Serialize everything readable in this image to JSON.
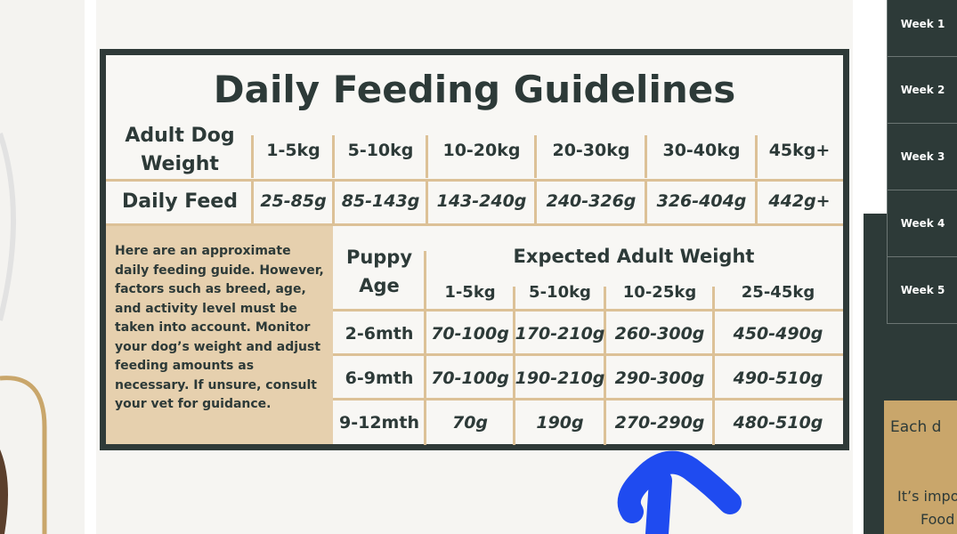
{
  "title": "Daily Feeding Guidelines",
  "adult_table": {
    "header": [
      "Adult Dog Weight",
      "1-5kg",
      "5-10kg",
      "10-20kg",
      "20-30kg",
      "30-40kg",
      "45kg+"
    ],
    "row": [
      "Daily Feed",
      "25-85g",
      "85-143g",
      "143-240g",
      "240-326g",
      "326-404g",
      "442g+"
    ]
  },
  "note": "Here are an approximate daily feeding guide. However, factors such as breed, age, and activity level must be taken into account. Monitor your dog’s weight and adjust feeding amounts as necessary. If unsure, consult your vet for guidance.",
  "puppy_table": {
    "age_header": "Puppy Age",
    "group_header": "Expected Adult Weight",
    "weights": [
      "1-5kg",
      "5-10kg",
      "10-25kg",
      "25-45kg"
    ],
    "rows": [
      [
        "2-6mth",
        "70-100g",
        "170-210g",
        "260-300g",
        "450-490g"
      ],
      [
        "6-9mth",
        "70-100g",
        "190-210g",
        "290-300g",
        "490-510g"
      ],
      [
        "9-12mth",
        "70g",
        "190g",
        "270-290g",
        "480-510g"
      ]
    ]
  },
  "sidebar": {
    "weeks": [
      "Week 1",
      "Week 2",
      "Week 3",
      "Week 4",
      "Week 5"
    ],
    "texts": [
      "Each d",
      "It’s impo",
      "Food"
    ]
  }
}
